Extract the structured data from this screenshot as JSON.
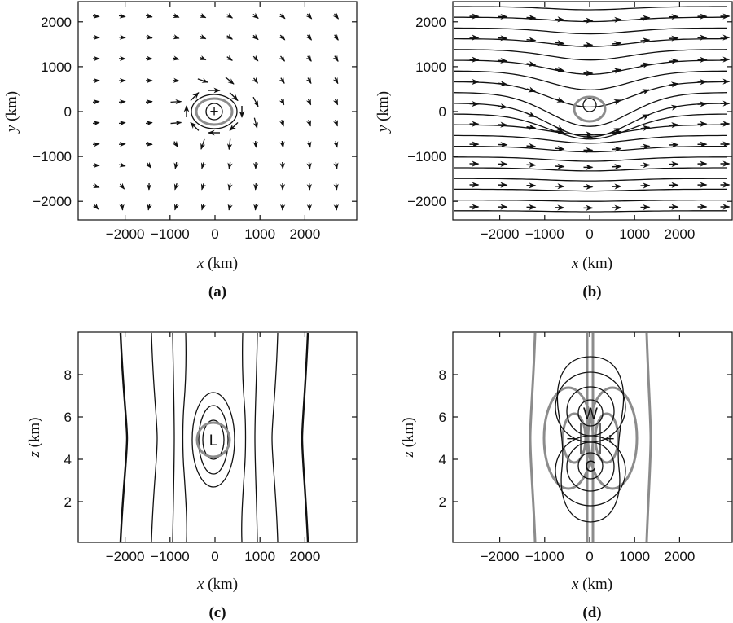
{
  "panels": [
    {
      "id": "a",
      "caption": "(a)",
      "x_label_var": "x",
      "x_label_unit": " (km)",
      "y_label_var": "y",
      "y_label_unit": " (km)",
      "x_ticks": [
        "−2000",
        "−1000",
        "0",
        "1000",
        "2000"
      ],
      "y_ticks": [
        "2000",
        "1000",
        "0",
        "−1000",
        "−2000"
      ],
      "x_tick_values": [
        -2000,
        -1000,
        0,
        1000,
        2000
      ],
      "y_tick_values": [
        2000,
        1000,
        0,
        -1000,
        -2000
      ],
      "center_symbol": "+",
      "content": "vector field of arrows circulating around a central high"
    },
    {
      "id": "b",
      "caption": "(b)",
      "x_label_var": "x",
      "x_label_unit": " (km)",
      "y_label_var": "y",
      "y_label_unit": " (km)",
      "x_ticks": [
        "−2000",
        "−1000",
        "0",
        "1000",
        "2000"
      ],
      "y_ticks": [
        "2000",
        "1000",
        "0",
        "−1000",
        "−2000"
      ],
      "x_tick_values": [
        -2000,
        -1000,
        0,
        1000,
        2000
      ],
      "y_tick_values": [
        2000,
        1000,
        0,
        -1000,
        -2000
      ],
      "content": "streamlines deflected south around center with eastward arrows"
    },
    {
      "id": "c",
      "caption": "(c)",
      "x_label_var": "x",
      "x_label_unit": " (km)",
      "y_label_var": "z",
      "y_label_unit": " (km)",
      "x_ticks": [
        "−2000",
        "−1000",
        "0",
        "1000",
        "2000"
      ],
      "y_ticks": [
        "8",
        "6",
        "4",
        "2"
      ],
      "x_tick_values": [
        -2000,
        -1000,
        0,
        1000,
        2000
      ],
      "y_tick_values": [
        8,
        6,
        4,
        2
      ],
      "center_label": "L",
      "content": "nested contours around a low at z = 5 km"
    },
    {
      "id": "d",
      "caption": "(d)",
      "x_label_var": "x",
      "x_label_unit": " (km)",
      "y_label_var": "z",
      "y_label_unit": " (km)",
      "x_ticks": [
        "−2000",
        "−1000",
        "0",
        "1000",
        "2000"
      ],
      "y_ticks": [
        "8",
        "6",
        "4",
        "2"
      ],
      "x_tick_values": [
        -2000,
        -1000,
        0,
        1000,
        2000
      ],
      "y_tick_values": [
        8,
        6,
        4,
        2
      ],
      "warm_label": "W",
      "cold_label": "C",
      "minus_label": "−",
      "plus_label": "+",
      "content": "warm anomaly above, cold anomaly below, gray dipole contours"
    }
  ],
  "colors": {
    "black_contour": "#111111",
    "gray_contour": "#8c8c8c",
    "background": "#ffffff"
  }
}
